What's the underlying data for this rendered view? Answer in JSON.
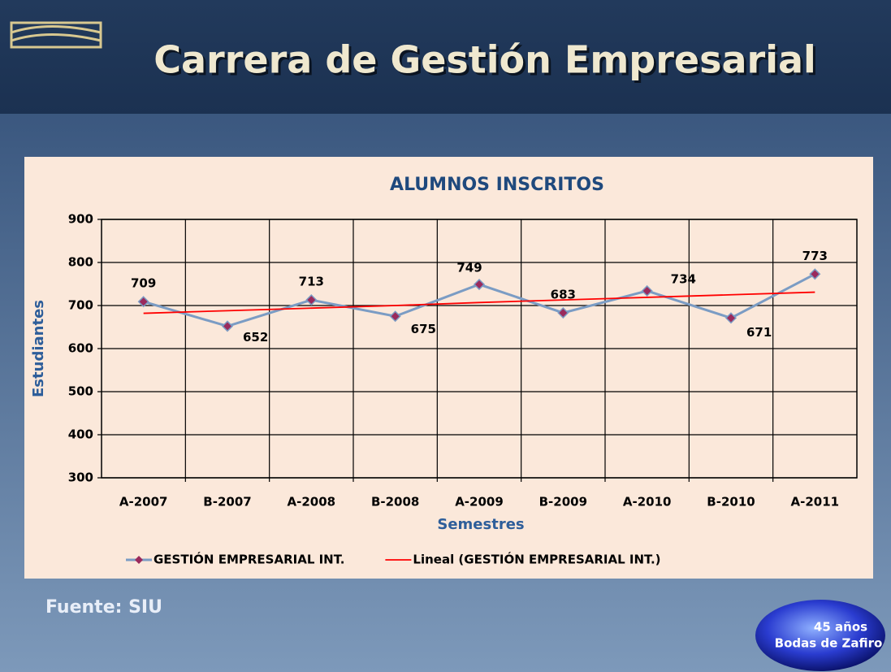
{
  "slide": {
    "title": "Carrera de Gestión Empresarial",
    "source": "Fuente: SIU",
    "badge": [
      "45 años",
      "Bodas de Zafiro"
    ]
  },
  "chart_data": {
    "type": "line",
    "title": "ALUMNOS INSCRITOS",
    "x_label": "Semestres",
    "y_label": "Estudiantes",
    "categories": [
      "A-2007",
      "B-2007",
      "A-2008",
      "B-2008",
      "A-2009",
      "B-2009",
      "A-2010",
      "B-2010",
      "A-2011"
    ],
    "series": [
      {
        "name": "GESTIÓN EMPRESARIAL INT.",
        "color": "#7b9cc4",
        "marker_color": "#9b2a5c",
        "data_labels": true,
        "values": [
          709,
          652,
          713,
          675,
          749,
          683,
          734,
          671,
          773
        ]
      },
      {
        "name": "Lineal (GESTIÓN EMPRESARIAL INT.)",
        "color": "#ff0000",
        "data_labels": false,
        "values": [
          682,
          688,
          694,
          700,
          707,
          713,
          719,
          725,
          731
        ]
      }
    ],
    "ylim": [
      300,
      900
    ],
    "yticks": [
      300,
      400,
      500,
      600,
      700,
      800,
      900
    ],
    "grid": true,
    "legend": "bottom"
  }
}
